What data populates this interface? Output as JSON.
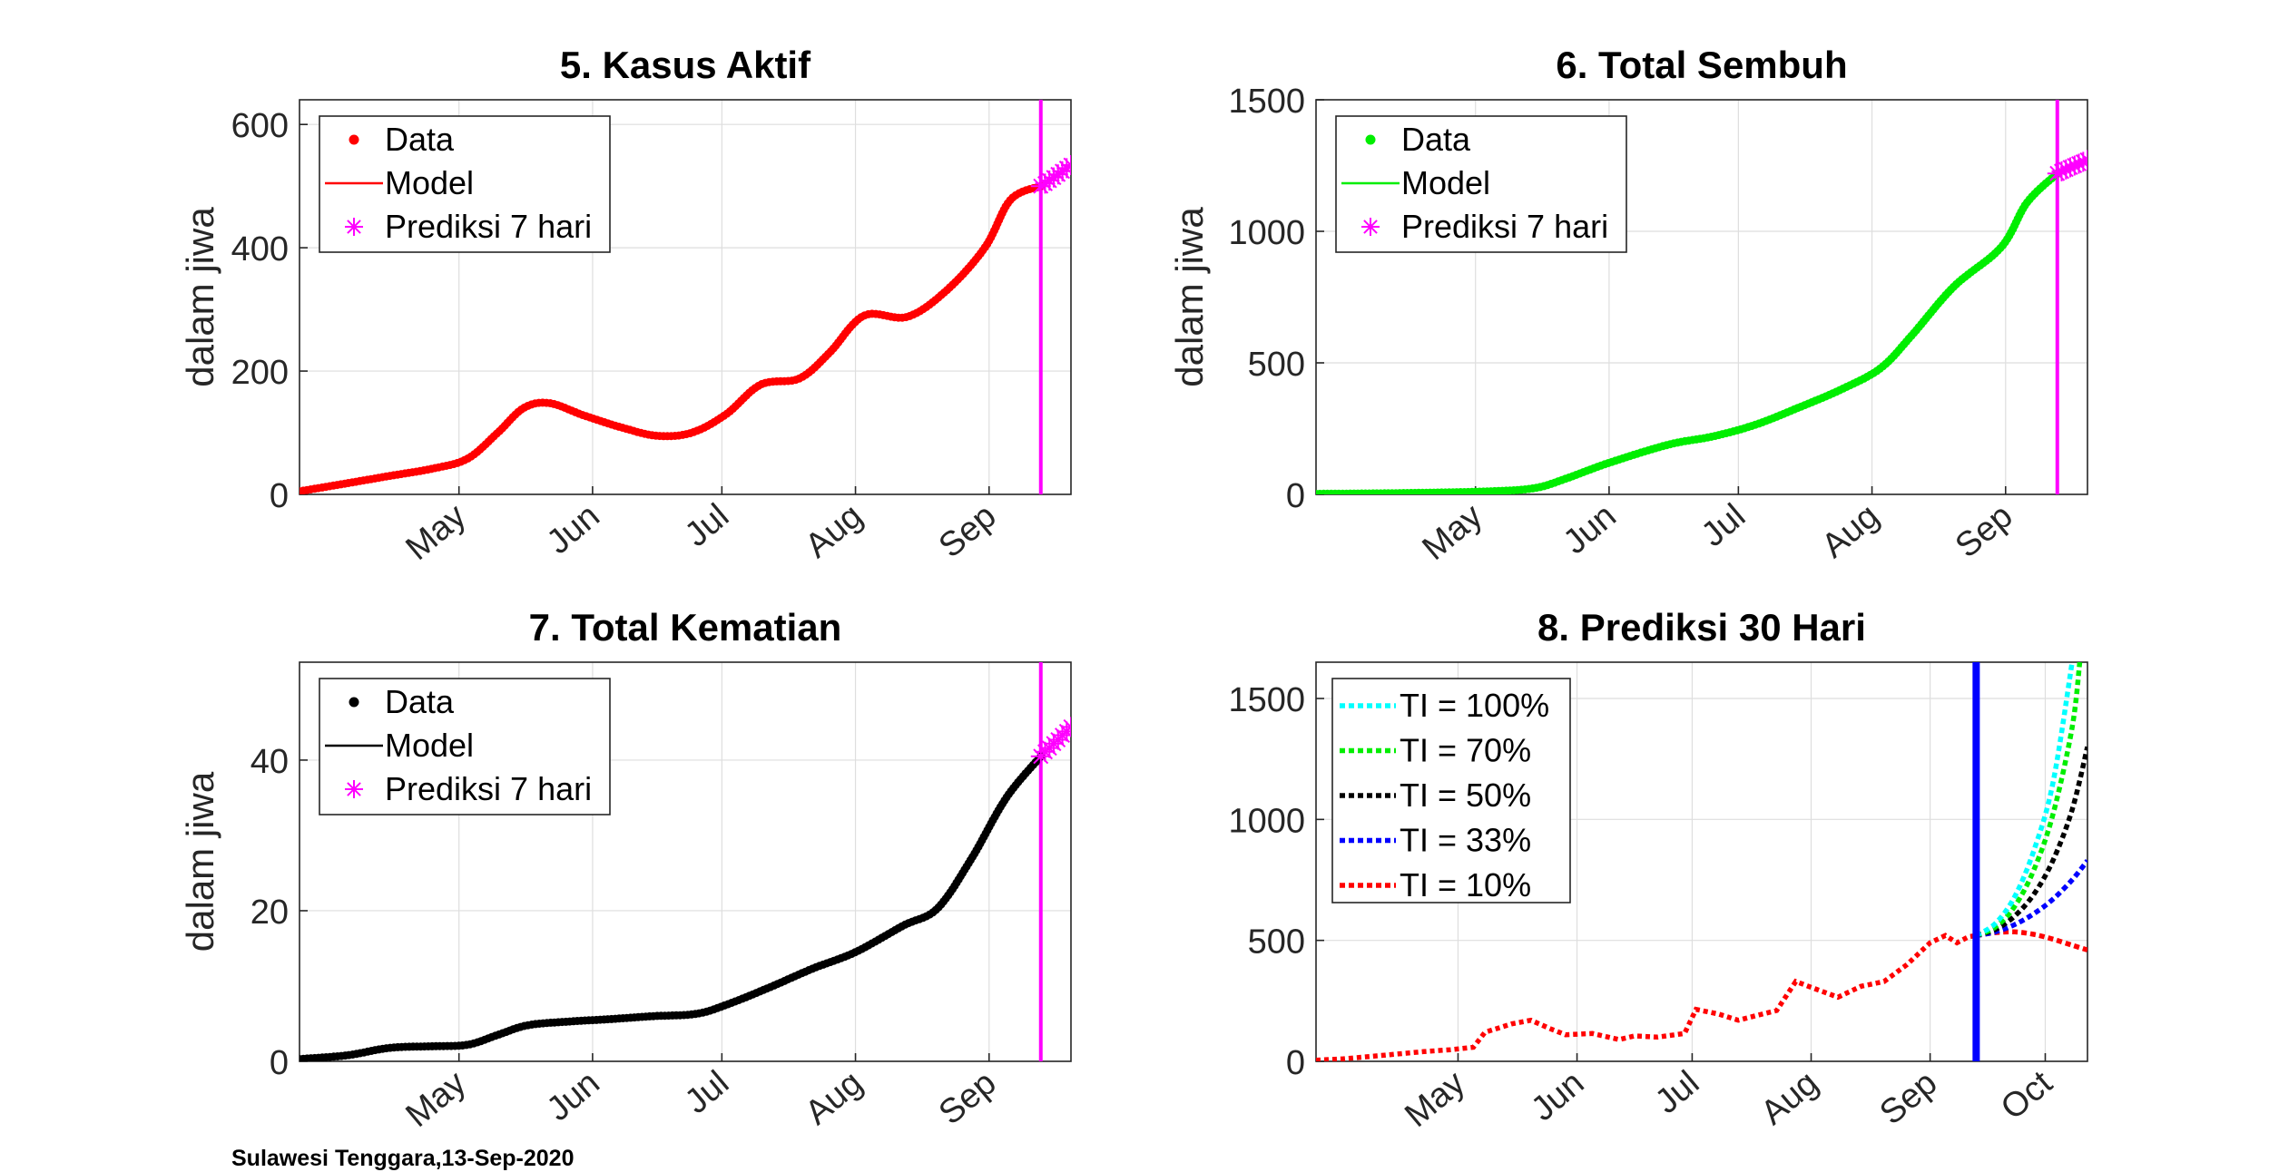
{
  "footer": "Sulawesi Tenggara,13-Sep-2020",
  "chart_data": [
    {
      "type": "line",
      "title": "5. Kasus Aktif",
      "ylabel": "dalam jiwa",
      "xlim": [
        "2020-03-25",
        "2020-09-20"
      ],
      "ylim": [
        0,
        640
      ],
      "yticks": [
        0,
        200,
        400,
        600
      ],
      "xticks": [
        {
          "date": "2020-05-01",
          "label": "May"
        },
        {
          "date": "2020-06-01",
          "label": "Jun"
        },
        {
          "date": "2020-07-01",
          "label": "Jul"
        },
        {
          "date": "2020-08-01",
          "label": "Aug"
        },
        {
          "date": "2020-09-01",
          "label": "Sep"
        }
      ],
      "grid": true,
      "legend": {
        "position": "top-left",
        "entries": [
          "Data",
          "Model",
          "Prediksi 7 hari"
        ]
      },
      "colors": {
        "data": "#ff0000",
        "model": "#ff0000",
        "prediction": "#ff00ff",
        "vline": "#ff00ff"
      },
      "prediction_start": "2020-09-13",
      "series": [
        {
          "name": "Data",
          "points": [
            [
              "2020-03-25",
              5
            ],
            [
              "2020-04-05",
              18
            ],
            [
              "2020-04-15",
              30
            ],
            [
              "2020-04-25",
              42
            ],
            [
              "2020-05-03",
              58
            ],
            [
              "2020-05-10",
              100
            ],
            [
              "2020-05-16",
              140
            ],
            [
              "2020-05-22",
              148
            ],
            [
              "2020-05-30",
              128
            ],
            [
              "2020-06-08",
              108
            ],
            [
              "2020-06-16",
              95
            ],
            [
              "2020-06-24",
              100
            ],
            [
              "2020-07-02",
              130
            ],
            [
              "2020-07-10",
              178
            ],
            [
              "2020-07-19",
              188
            ],
            [
              "2020-07-26",
              230
            ],
            [
              "2020-08-03",
              290
            ],
            [
              "2020-08-13",
              288
            ],
            [
              "2020-08-22",
              330
            ],
            [
              "2020-08-31",
              400
            ],
            [
              "2020-09-06",
              478
            ],
            [
              "2020-09-13",
              500
            ]
          ]
        },
        {
          "name": "Prediksi 7 hari",
          "points": [
            [
              "2020-09-13",
              500
            ],
            [
              "2020-09-14",
              504
            ],
            [
              "2020-09-15",
              509
            ],
            [
              "2020-09-16",
              514
            ],
            [
              "2020-09-17",
              519
            ],
            [
              "2020-09-18",
              524
            ],
            [
              "2020-09-19",
              529
            ],
            [
              "2020-09-20",
              534
            ]
          ]
        }
      ]
    },
    {
      "type": "line",
      "title": "6. Total Sembuh",
      "ylabel": "dalam jiwa",
      "xlim": [
        "2020-03-25",
        "2020-09-20"
      ],
      "ylim": [
        0,
        1500
      ],
      "yticks": [
        0,
        500,
        1000,
        1500
      ],
      "xticks": [
        {
          "date": "2020-05-01",
          "label": "May"
        },
        {
          "date": "2020-06-01",
          "label": "Jun"
        },
        {
          "date": "2020-07-01",
          "label": "Jul"
        },
        {
          "date": "2020-08-01",
          "label": "Aug"
        },
        {
          "date": "2020-09-01",
          "label": "Sep"
        }
      ],
      "grid": true,
      "legend": {
        "position": "top-left",
        "entries": [
          "Data",
          "Model",
          "Prediksi 7 hari"
        ]
      },
      "colors": {
        "data": "#00ee00",
        "model": "#00ee00",
        "prediction": "#ff00ff",
        "vline": "#ff00ff"
      },
      "prediction_start": "2020-09-13",
      "series": [
        {
          "name": "Data",
          "points": [
            [
              "2020-03-25",
              2
            ],
            [
              "2020-04-15",
              5
            ],
            [
              "2020-05-05",
              12
            ],
            [
              "2020-05-15",
              25
            ],
            [
              "2020-05-22",
              60
            ],
            [
              "2020-06-01",
              120
            ],
            [
              "2020-06-15",
              190
            ],
            [
              "2020-06-25",
              220
            ],
            [
              "2020-07-05",
              265
            ],
            [
              "2020-07-15",
              330
            ],
            [
              "2020-07-25",
              400
            ],
            [
              "2020-08-03",
              480
            ],
            [
              "2020-08-10",
              600
            ],
            [
              "2020-08-20",
              790
            ],
            [
              "2020-08-31",
              940
            ],
            [
              "2020-09-06",
              1110
            ],
            [
              "2020-09-13",
              1220
            ]
          ]
        },
        {
          "name": "Prediksi 7 hari",
          "points": [
            [
              "2020-09-13",
              1220
            ],
            [
              "2020-09-14",
              1228
            ],
            [
              "2020-09-15",
              1235
            ],
            [
              "2020-09-16",
              1243
            ],
            [
              "2020-09-17",
              1250
            ],
            [
              "2020-09-18",
              1257
            ],
            [
              "2020-09-19",
              1264
            ],
            [
              "2020-09-20",
              1271
            ]
          ]
        }
      ]
    },
    {
      "type": "line",
      "title": "7. Total Kematian",
      "ylabel": "dalam jiwa",
      "xlim": [
        "2020-03-25",
        "2020-09-20"
      ],
      "ylim": [
        0,
        53
      ],
      "yticks": [
        0,
        20,
        40
      ],
      "xticks": [
        {
          "date": "2020-05-01",
          "label": "May"
        },
        {
          "date": "2020-06-01",
          "label": "Jun"
        },
        {
          "date": "2020-07-01",
          "label": "Jul"
        },
        {
          "date": "2020-08-01",
          "label": "Aug"
        },
        {
          "date": "2020-09-01",
          "label": "Sep"
        }
      ],
      "grid": true,
      "legend": {
        "position": "top-left",
        "entries": [
          "Data",
          "Model",
          "Prediksi 7 hari"
        ]
      },
      "colors": {
        "data": "#000000",
        "model": "#000000",
        "prediction": "#ff00ff",
        "vline": "#ff00ff"
      },
      "prediction_start": "2020-09-13",
      "series": [
        {
          "name": "Data",
          "points": [
            [
              "2020-03-25",
              0.3
            ],
            [
              "2020-04-05",
              0.8
            ],
            [
              "2020-04-15",
              1.8
            ],
            [
              "2020-04-25",
              2.0
            ],
            [
              "2020-05-03",
              2.2
            ],
            [
              "2020-05-10",
              3.5
            ],
            [
              "2020-05-17",
              4.8
            ],
            [
              "2020-05-27",
              5.3
            ],
            [
              "2020-06-05",
              5.6
            ],
            [
              "2020-06-15",
              6.0
            ],
            [
              "2020-06-25",
              6.3
            ],
            [
              "2020-07-02",
              7.5
            ],
            [
              "2020-07-12",
              9.8
            ],
            [
              "2020-07-22",
              12.3
            ],
            [
              "2020-08-01",
              14.5
            ],
            [
              "2020-08-12",
              18.0
            ],
            [
              "2020-08-20",
              20.3
            ],
            [
              "2020-08-28",
              27.0
            ],
            [
              "2020-09-05",
              35.0
            ],
            [
              "2020-09-13",
              40.5
            ]
          ]
        },
        {
          "name": "Prediksi 7 hari",
          "points": [
            [
              "2020-09-13",
              40.5
            ],
            [
              "2020-09-14",
              41.1
            ],
            [
              "2020-09-15",
              41.6
            ],
            [
              "2020-09-16",
              42.2
            ],
            [
              "2020-09-17",
              42.7
            ],
            [
              "2020-09-18",
              43.3
            ],
            [
              "2020-09-19",
              43.8
            ],
            [
              "2020-09-20",
              44.4
            ]
          ]
        }
      ]
    },
    {
      "type": "line",
      "title": "8. Prediksi 30 Hari",
      "xlim": [
        "2020-03-25",
        "2020-10-12"
      ],
      "ylim": [
        0,
        1650
      ],
      "yticks": [
        0,
        500,
        1000,
        1500
      ],
      "xticks": [
        {
          "date": "2020-05-01",
          "label": "May"
        },
        {
          "date": "2020-06-01",
          "label": "Jun"
        },
        {
          "date": "2020-07-01",
          "label": "Jul"
        },
        {
          "date": "2020-08-01",
          "label": "Aug"
        },
        {
          "date": "2020-09-01",
          "label": "Sep"
        },
        {
          "date": "2020-10-01",
          "label": "Oct"
        }
      ],
      "grid": true,
      "legend": {
        "position": "top-left",
        "entries": [
          "TI = 100%",
          "TI = 70%",
          "TI = 50%",
          "TI = 33%",
          "TI = 10%"
        ]
      },
      "colors": {
        "vline": "#0000ff"
      },
      "prediction_start": "2020-09-13",
      "history": [
        [
          "2020-03-25",
          5
        ],
        [
          "2020-04-01",
          10
        ],
        [
          "2020-04-08",
          20
        ],
        [
          "2020-04-15",
          30
        ],
        [
          "2020-04-22",
          40
        ],
        [
          "2020-04-29",
          48
        ],
        [
          "2020-05-05",
          58
        ],
        [
          "2020-05-08",
          120
        ],
        [
          "2020-05-15",
          155
        ],
        [
          "2020-05-20",
          170
        ],
        [
          "2020-05-25",
          135
        ],
        [
          "2020-05-29",
          110
        ],
        [
          "2020-06-05",
          115
        ],
        [
          "2020-06-12",
          90
        ],
        [
          "2020-06-16",
          105
        ],
        [
          "2020-06-22",
          100
        ],
        [
          "2020-06-29",
          115
        ],
        [
          "2020-07-02",
          215
        ],
        [
          "2020-07-08",
          195
        ],
        [
          "2020-07-13",
          170
        ],
        [
          "2020-07-18",
          190
        ],
        [
          "2020-07-23",
          210
        ],
        [
          "2020-07-28",
          330
        ],
        [
          "2020-08-02",
          300
        ],
        [
          "2020-08-08",
          265
        ],
        [
          "2020-08-14",
          310
        ],
        [
          "2020-08-20",
          330
        ],
        [
          "2020-08-26",
          400
        ],
        [
          "2020-09-01",
          490
        ],
        [
          "2020-09-05",
          520
        ],
        [
          "2020-09-08",
          490
        ],
        [
          "2020-09-11",
          515
        ],
        [
          "2020-09-13",
          520
        ]
      ],
      "series": [
        {
          "name": "TI = 100%",
          "color": "#00ffff",
          "points": [
            [
              "2020-09-13",
              520
            ],
            [
              "2020-09-18",
              570
            ],
            [
              "2020-09-23",
              680
            ],
            [
              "2020-09-28",
              870
            ],
            [
              "2020-10-03",
              1150
            ],
            [
              "2020-10-08",
              1650
            ]
          ]
        },
        {
          "name": "TI = 70%",
          "color": "#00ee00",
          "points": [
            [
              "2020-09-13",
              520
            ],
            [
              "2020-09-18",
              555
            ],
            [
              "2020-09-23",
              640
            ],
            [
              "2020-09-28",
              790
            ],
            [
              "2020-10-03",
              1020
            ],
            [
              "2020-10-08",
              1380
            ],
            [
              "2020-10-10",
              1650
            ]
          ]
        },
        {
          "name": "TI = 50%",
          "color": "#000000",
          "points": [
            [
              "2020-09-13",
              520
            ],
            [
              "2020-09-18",
              545
            ],
            [
              "2020-09-23",
              600
            ],
            [
              "2020-09-28",
              690
            ],
            [
              "2020-10-03",
              830
            ],
            [
              "2020-10-08",
              1040
            ],
            [
              "2020-10-12",
              1300
            ]
          ]
        },
        {
          "name": "TI = 33%",
          "color": "#0000ff",
          "points": [
            [
              "2020-09-13",
              520
            ],
            [
              "2020-09-18",
              535
            ],
            [
              "2020-09-23",
              565
            ],
            [
              "2020-09-28",
              610
            ],
            [
              "2020-10-03",
              670
            ],
            [
              "2020-10-08",
              750
            ],
            [
              "2020-10-12",
              830
            ]
          ]
        },
        {
          "name": "TI = 10%",
          "color": "#ff0000",
          "points": [
            [
              "2020-09-13",
              520
            ],
            [
              "2020-09-18",
              532
            ],
            [
              "2020-09-23",
              535
            ],
            [
              "2020-09-28",
              525
            ],
            [
              "2020-10-03",
              505
            ],
            [
              "2020-10-08",
              480
            ],
            [
              "2020-10-12",
              460
            ]
          ]
        }
      ]
    }
  ]
}
